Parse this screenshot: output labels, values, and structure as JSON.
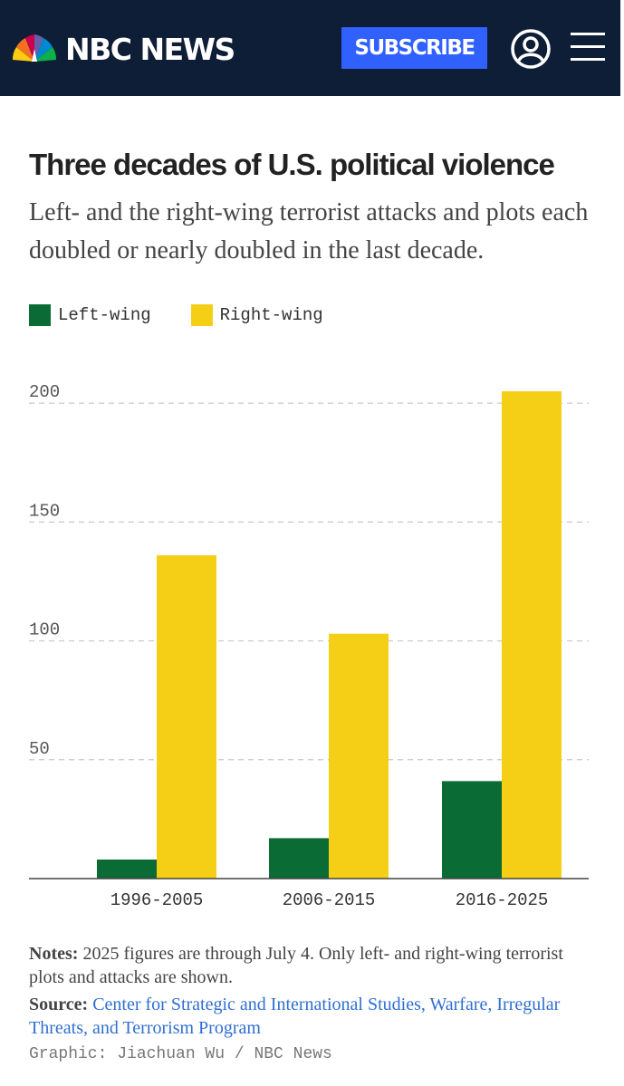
{
  "header": {
    "brand": "NBC NEWS",
    "subscribe_label": "SUBSCRIBE",
    "icons": [
      "nbc-peacock-logo",
      "account-icon",
      "hamburger-menu-icon"
    ],
    "background_color": "#0f1e37",
    "subscribe_color": "#3061ff"
  },
  "article": {
    "title": "Three decades of U.S. political violence",
    "subtitle": "Left- and the right-wing terrorist attacks and plots each doubled or nearly doubled in the last decade."
  },
  "chart_data": {
    "type": "bar",
    "categories": [
      "1996-2005",
      "2006-2015",
      "2016-2025"
    ],
    "series": [
      {
        "name": "Left-wing",
        "values": [
          8,
          17,
          41
        ],
        "color": "#0a6b35"
      },
      {
        "name": "Right-wing",
        "values": [
          136,
          103,
          205
        ],
        "color": "#f5cf16"
      }
    ],
    "yticks": [
      "50",
      "100",
      "150",
      "200"
    ],
    "ytick_values": [
      50,
      100,
      150,
      200
    ],
    "ylim": [
      0,
      205
    ],
    "grid": true,
    "legend_position": "top-left"
  },
  "footer": {
    "notes_label": "Notes:",
    "notes_text": "2025 figures are through July 4. Only left- and right-wing terrorist plots and attacks are shown.",
    "source_label": "Source:",
    "source_link": "Center for Strategic and International Studies, Warfare, Irregular Threats, and Terrorism Program",
    "credit": "Graphic: Jiachuan Wu / NBC News"
  }
}
